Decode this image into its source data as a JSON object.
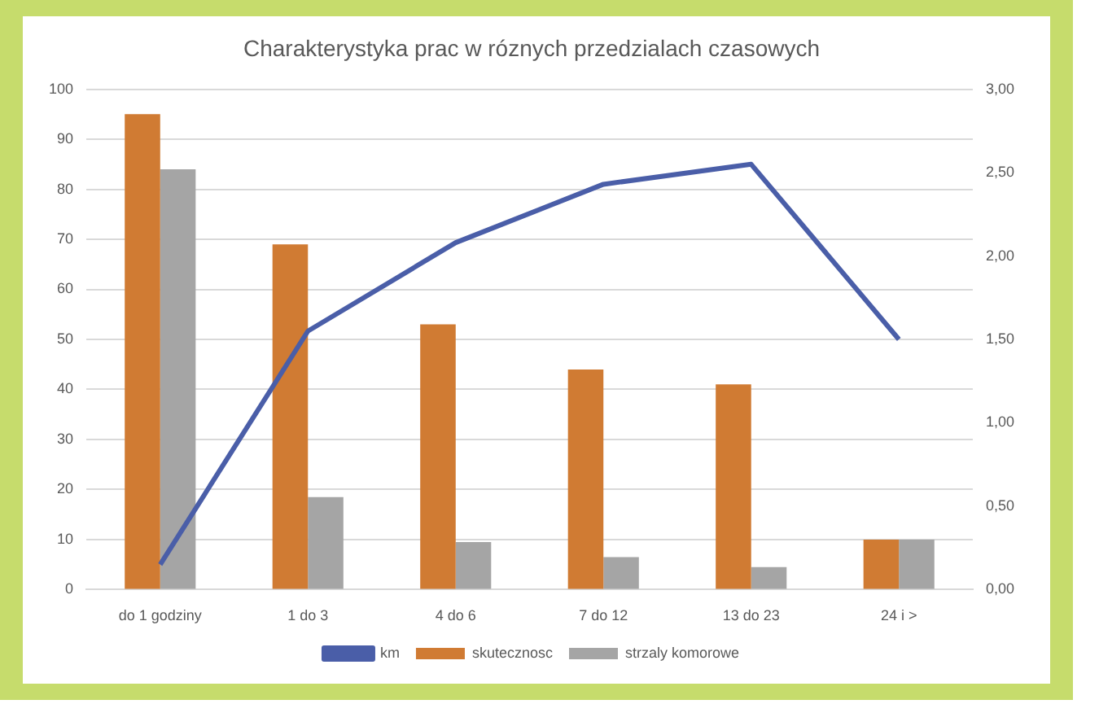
{
  "chart_data": {
    "type": "bar",
    "title": "Charakterystyka prac w róznych przedzialach czasowych",
    "categories": [
      "do 1 godziny",
      "1 do 3",
      "4 do 6",
      "7 do 12",
      "13 do 23",
      "24 i >"
    ],
    "series": [
      {
        "name": "skutecznosc",
        "color": "#d07b33",
        "values": [
          95,
          69,
          53,
          44,
          41,
          10
        ]
      },
      {
        "name": "strzaly komorowe",
        "color": "#a5a5a5",
        "values": [
          84,
          18.5,
          9.5,
          6.5,
          4.5,
          10
        ]
      },
      {
        "name": "km",
        "type": "line",
        "axis": "y2",
        "color": "#4a5ea8",
        "values": [
          0.15,
          1.55,
          2.08,
          2.43,
          2.55,
          1.5
        ]
      }
    ],
    "ylim": [
      0,
      100
    ],
    "yticks": [
      0,
      10,
      20,
      30,
      40,
      50,
      60,
      70,
      80,
      90,
      100
    ],
    "y2lim": [
      0,
      3
    ],
    "y2ticks": [
      {
        "value": 0,
        "label": "0,00"
      },
      {
        "value": 0.5,
        "label": "0,50"
      },
      {
        "value": 1,
        "label": "1,00"
      },
      {
        "value": 1.5,
        "label": "1,50"
      },
      {
        "value": 2,
        "label": "2,00"
      },
      {
        "value": 2.5,
        "label": "2,50"
      },
      {
        "value": 3,
        "label": "3,00"
      }
    ],
    "grid": "y",
    "legend": "bottom",
    "marker": "none"
  }
}
